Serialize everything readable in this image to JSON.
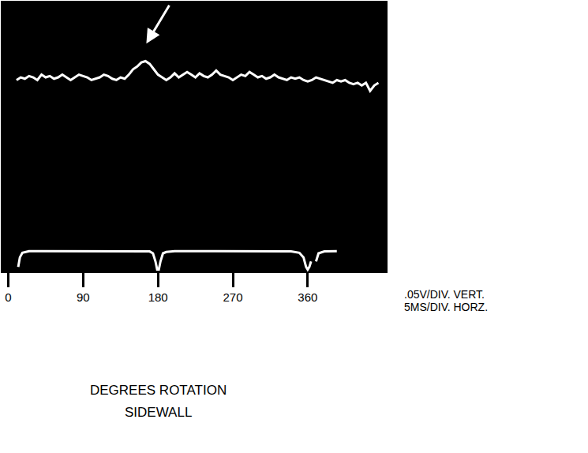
{
  "chart_data": {
    "type": "line",
    "x_label": "DEGREES ROTATION",
    "caption": "SIDEWALL",
    "annotations": [
      ".05V/DIV. VERT.",
      "5MS/DIV. HORZ."
    ],
    "xlim": [
      -8,
      455
    ],
    "xticks": [
      0,
      90,
      180,
      270,
      360
    ],
    "ylim": [
      0,
      10
    ],
    "yticks": [],
    "grid": false,
    "tick_labels": "x",
    "series": [
      {
        "color": "#ffffff",
        "x": [
          10,
          15,
          20,
          25,
          30,
          35,
          40,
          45,
          50,
          55,
          60,
          65,
          70,
          75,
          80,
          85,
          90,
          95,
          100,
          105,
          110,
          115,
          120,
          125,
          130,
          135,
          140,
          145,
          150,
          155,
          160,
          165,
          170,
          175,
          180,
          185,
          190,
          195,
          200,
          205,
          210,
          215,
          220,
          225,
          230,
          235,
          240,
          245,
          250,
          255,
          260,
          265,
          270,
          275,
          280,
          285,
          290,
          295,
          300,
          305,
          310,
          315,
          320,
          325,
          330,
          335,
          340,
          345,
          350,
          355,
          360,
          365,
          370,
          375,
          380,
          385,
          390,
          395,
          400,
          405,
          410,
          415,
          420,
          425,
          430,
          435,
          440,
          445
        ],
        "values": [
          7.1,
          7.2,
          7.15,
          7.25,
          7.2,
          7.1,
          7.3,
          7.2,
          7.25,
          7.15,
          7.2,
          7.3,
          7.2,
          7.1,
          7.2,
          7.3,
          7.25,
          7.2,
          7.1,
          7.15,
          7.2,
          7.3,
          7.25,
          7.15,
          7.1,
          7.2,
          7.15,
          7.3,
          7.5,
          7.6,
          7.75,
          7.8,
          7.7,
          7.5,
          7.3,
          7.2,
          7.1,
          7.2,
          7.35,
          7.2,
          7.3,
          7.4,
          7.3,
          7.2,
          7.35,
          7.25,
          7.2,
          7.3,
          7.45,
          7.3,
          7.25,
          7.2,
          7.1,
          7.2,
          7.3,
          7.25,
          7.4,
          7.3,
          7.2,
          7.25,
          7.15,
          7.2,
          7.3,
          7.2,
          7.15,
          7.1,
          7.2,
          7.15,
          7.2,
          7.1,
          7.05,
          7.1,
          7.2,
          7.15,
          7.1,
          7.05,
          7.0,
          7.1,
          7.05,
          7.1,
          7.0,
          6.95,
          7.0,
          6.9,
          7.0,
          6.7,
          6.9,
          7.0
        ]
      },
      {
        "color": "#ffffff",
        "x": [
          12,
          14,
          17,
          20,
          25,
          40,
          80,
          120,
          160,
          170,
          174,
          177,
          179,
          181,
          183,
          186,
          190,
          200,
          250,
          300,
          340,
          350,
          355,
          358,
          360,
          362,
          364,
          367,
          370,
          373,
          380,
          395
        ],
        "values": [
          0.2,
          0.55,
          0.72,
          0.75,
          0.78,
          0.78,
          0.78,
          0.78,
          0.78,
          0.77,
          0.7,
          0.4,
          0.1,
          0.1,
          0.4,
          0.7,
          0.75,
          0.78,
          0.78,
          0.78,
          0.77,
          0.72,
          0.55,
          0.2,
          0.1,
          0.2,
          0.4,
          null,
          0.4,
          0.7,
          0.77,
          0.78
        ]
      }
    ]
  }
}
